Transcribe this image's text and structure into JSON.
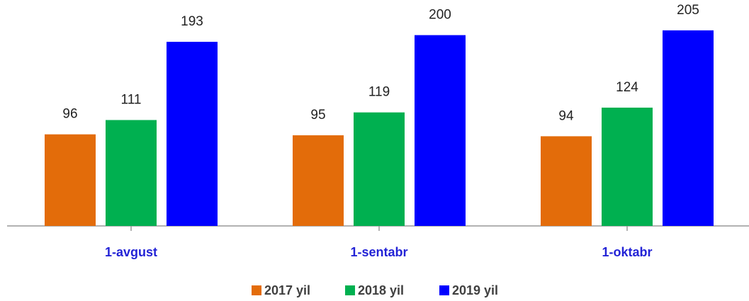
{
  "chart_data": {
    "type": "bar",
    "categories": [
      "1-avgust",
      "1-sentabr",
      "1-oktabr"
    ],
    "series": [
      {
        "name": "2017 yil",
        "color": "#e36c0a",
        "values": [
          96,
          95,
          94
        ]
      },
      {
        "name": "2018 yil",
        "color": "#00b050",
        "values": [
          111,
          119,
          124
        ]
      },
      {
        "name": "2019 yil",
        "color": "#0000ff",
        "values": [
          193,
          200,
          205
        ]
      }
    ]
  }
}
